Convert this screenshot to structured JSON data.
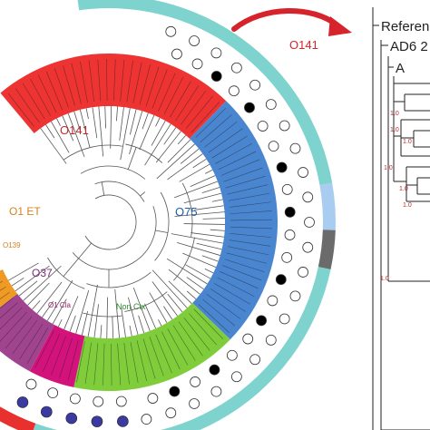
{
  "circular_tree": {
    "clades": [
      {
        "label": "O141",
        "color": "#d6232c"
      },
      {
        "label": "O75",
        "color": "#1f5fa8"
      },
      {
        "label": "O1 ET",
        "color": "#e08c1a"
      },
      {
        "label": "O139",
        "color": "#e08c1a"
      },
      {
        "label": "O37",
        "color": "#7a2a7a"
      },
      {
        "label": "O1 Cla",
        "color": "#a0186a"
      },
      {
        "label": "Non Ctx",
        "color": "#34a853"
      }
    ],
    "sector_colors": {
      "red": "#ee3333",
      "blue": "#4a86d0",
      "green": "#7fcd3a",
      "purple": "#a1448f",
      "magenta": "#d3137b",
      "orange": "#f09a26"
    },
    "outer_ring_colors": {
      "teal": "#7fd3cf",
      "lightblue": "#a9cdf0",
      "gray": "#6b6b6b",
      "green": "#2ea04a",
      "red": "#e8302e"
    },
    "dot_colors": {
      "filled": "#000000",
      "open": "#ffffff",
      "blue": "#3b3aa0"
    }
  },
  "callout": {
    "label": "O141",
    "color": "#d6232c"
  },
  "rect_tree": {
    "labels": [
      "Referen",
      "AD6 2",
      "A"
    ],
    "bootstrap_values": [
      "1.0",
      "1.0",
      "1.0",
      "1.0",
      "1.0",
      "1.0",
      "1.0"
    ],
    "bootstrap_color": "#c2272d"
  }
}
